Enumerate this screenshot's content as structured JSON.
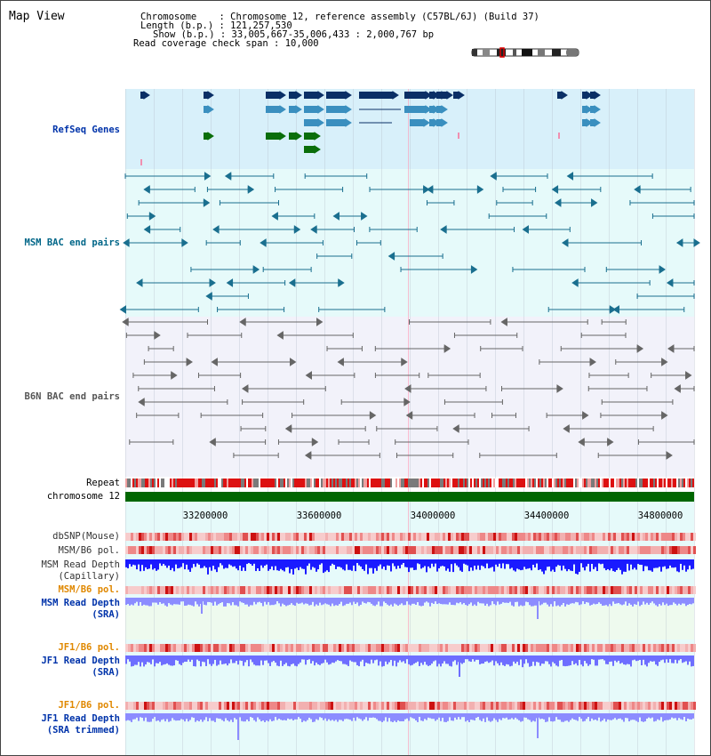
{
  "title": "Map View",
  "info": {
    "chromosome_key": "Chromosome",
    "chromosome_value": "Chromosome 12, reference assembly (C57BL/6J) (Build 37)",
    "length_key": "Length (b.p.)",
    "length_value": "121,257,530",
    "show_key": "Show (b.p.)",
    "show_value": "33,005,667-35,006,433 : 2,000,767 bp",
    "span_key": "Read coverage check span",
    "span_value": "10,000"
  },
  "tracks": {
    "refseq": "RefSeq Genes",
    "msm_bac": "MSM BAC end pairs",
    "b6n_bac": "B6N BAC end pairs",
    "repeat": "Repeat",
    "chromosome": "chromosome 12",
    "dbsnp": "dbSNP(Mouse)",
    "msm_b6_pol": "MSM/B6 pol.",
    "msm_read_depth_cap_1": "MSM Read Depth",
    "msm_read_depth_cap_2": "(Capillary)",
    "msm_b6_pol_2": "MSM/B6 pol.",
    "msm_read_depth_sra_1": "MSM Read Depth",
    "msm_read_depth_sra_2": "(SRA)",
    "jf1_b6_pol": "JF1/B6 pol.",
    "jf1_read_depth_sra_1": "JF1 Read Depth",
    "jf1_read_depth_sra_2": "(SRA)",
    "jf1_b6_pol_2": "JF1/B6 pol.",
    "jf1_read_depth_trim_1": "JF1 Read Depth",
    "jf1_read_depth_trim_2": "(SRA trimmed)"
  },
  "axis_ticks": [
    "33200000",
    "33600000",
    "34000000",
    "34400000",
    "34800000"
  ],
  "colors": {
    "refseq_bg": "#d8f0fa",
    "msm_bac_bg": "#e6fafa",
    "b6n_bg": "#f2f2fa",
    "label_blue": "#0033aa",
    "label_orange": "#e08800",
    "label_teal": "#006688",
    "refseq_navy": "#0a2f66",
    "refseq_mid": "#3a8fbf",
    "refseq_green": "#0a6e0a",
    "chrom_green": "#006600",
    "depth_blue": "#1a1aff",
    "depth_lavender": "#7a7aff"
  }
}
